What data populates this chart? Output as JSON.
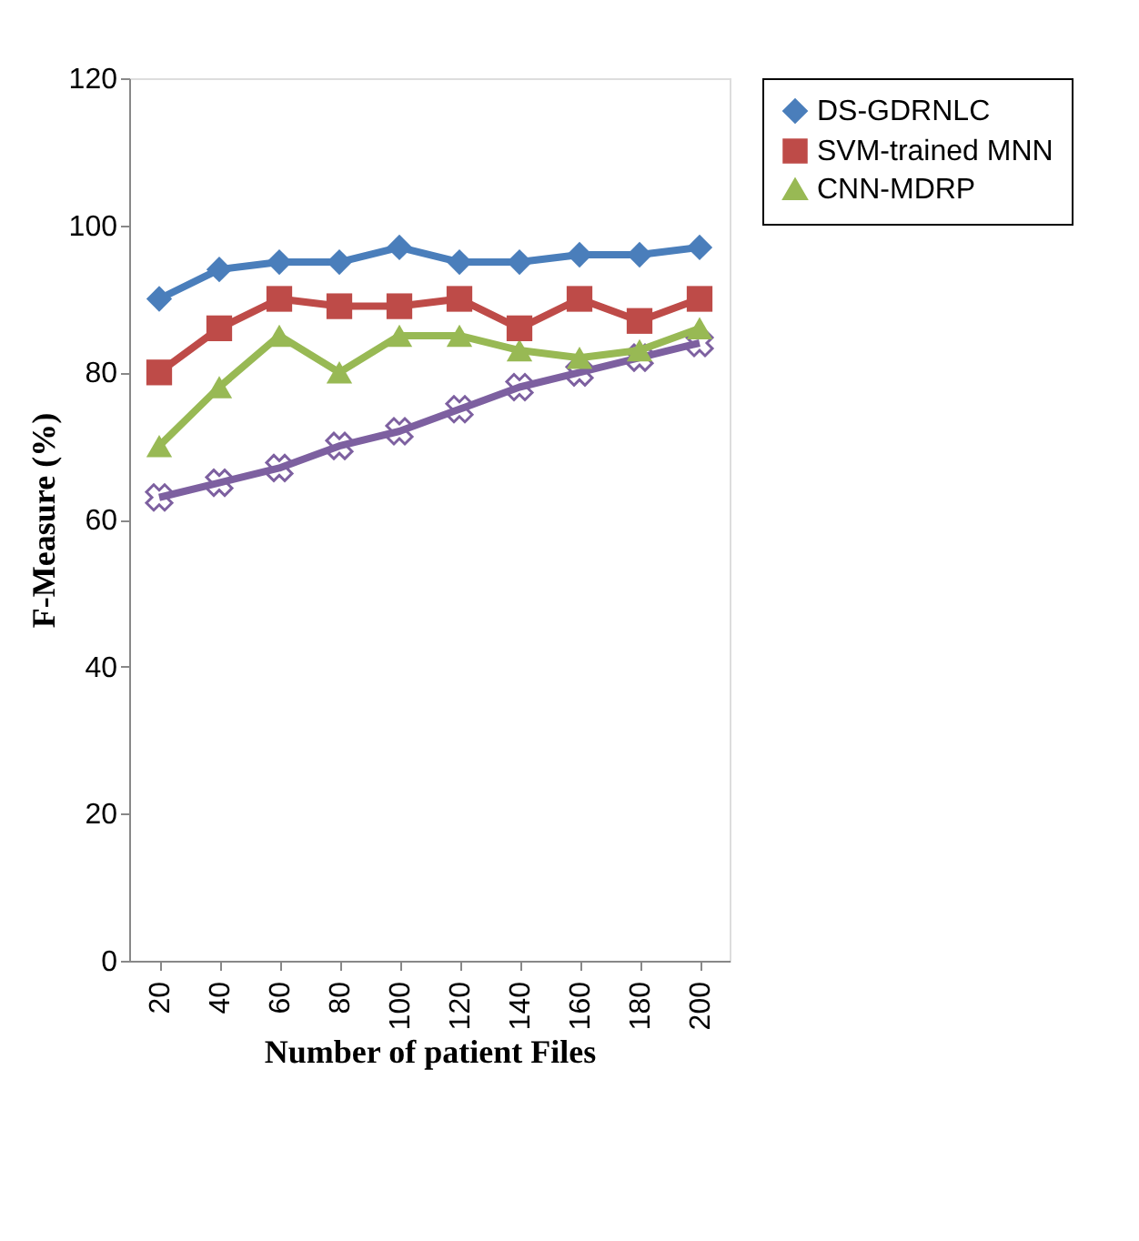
{
  "chart_data": {
    "type": "line",
    "xlabel": "Number of  patient Files",
    "ylabel": "F-Measure (%)",
    "categories": [
      "20",
      "40",
      "60",
      "80",
      "100",
      "120",
      "140",
      "160",
      "180",
      "200"
    ],
    "ylim": [
      0,
      120
    ],
    "yticks": [
      0,
      20,
      40,
      60,
      80,
      100,
      120
    ],
    "grid": false,
    "legend": "right",
    "series": [
      {
        "name": "DS-GDRNLC",
        "color": "#4a7ebb",
        "marker": "diamond",
        "values": [
          90,
          94,
          95,
          95,
          97,
          95,
          95,
          96,
          96,
          97
        ]
      },
      {
        "name": "SVM-trained MNN",
        "color": "#be4b48",
        "marker": "square",
        "values": [
          80,
          86,
          90,
          89,
          89,
          90,
          86,
          90,
          87,
          90
        ]
      },
      {
        "name": "CNN-MDRP",
        "color": "#98b954",
        "marker": "triangle",
        "values": [
          70,
          78,
          85,
          80,
          85,
          85,
          83,
          82,
          83,
          86
        ]
      },
      {
        "color": "#7d60a0",
        "marker": "cross",
        "values": [
          63,
          65,
          67,
          70,
          72,
          75,
          78,
          80,
          82,
          84
        ]
      }
    ]
  }
}
